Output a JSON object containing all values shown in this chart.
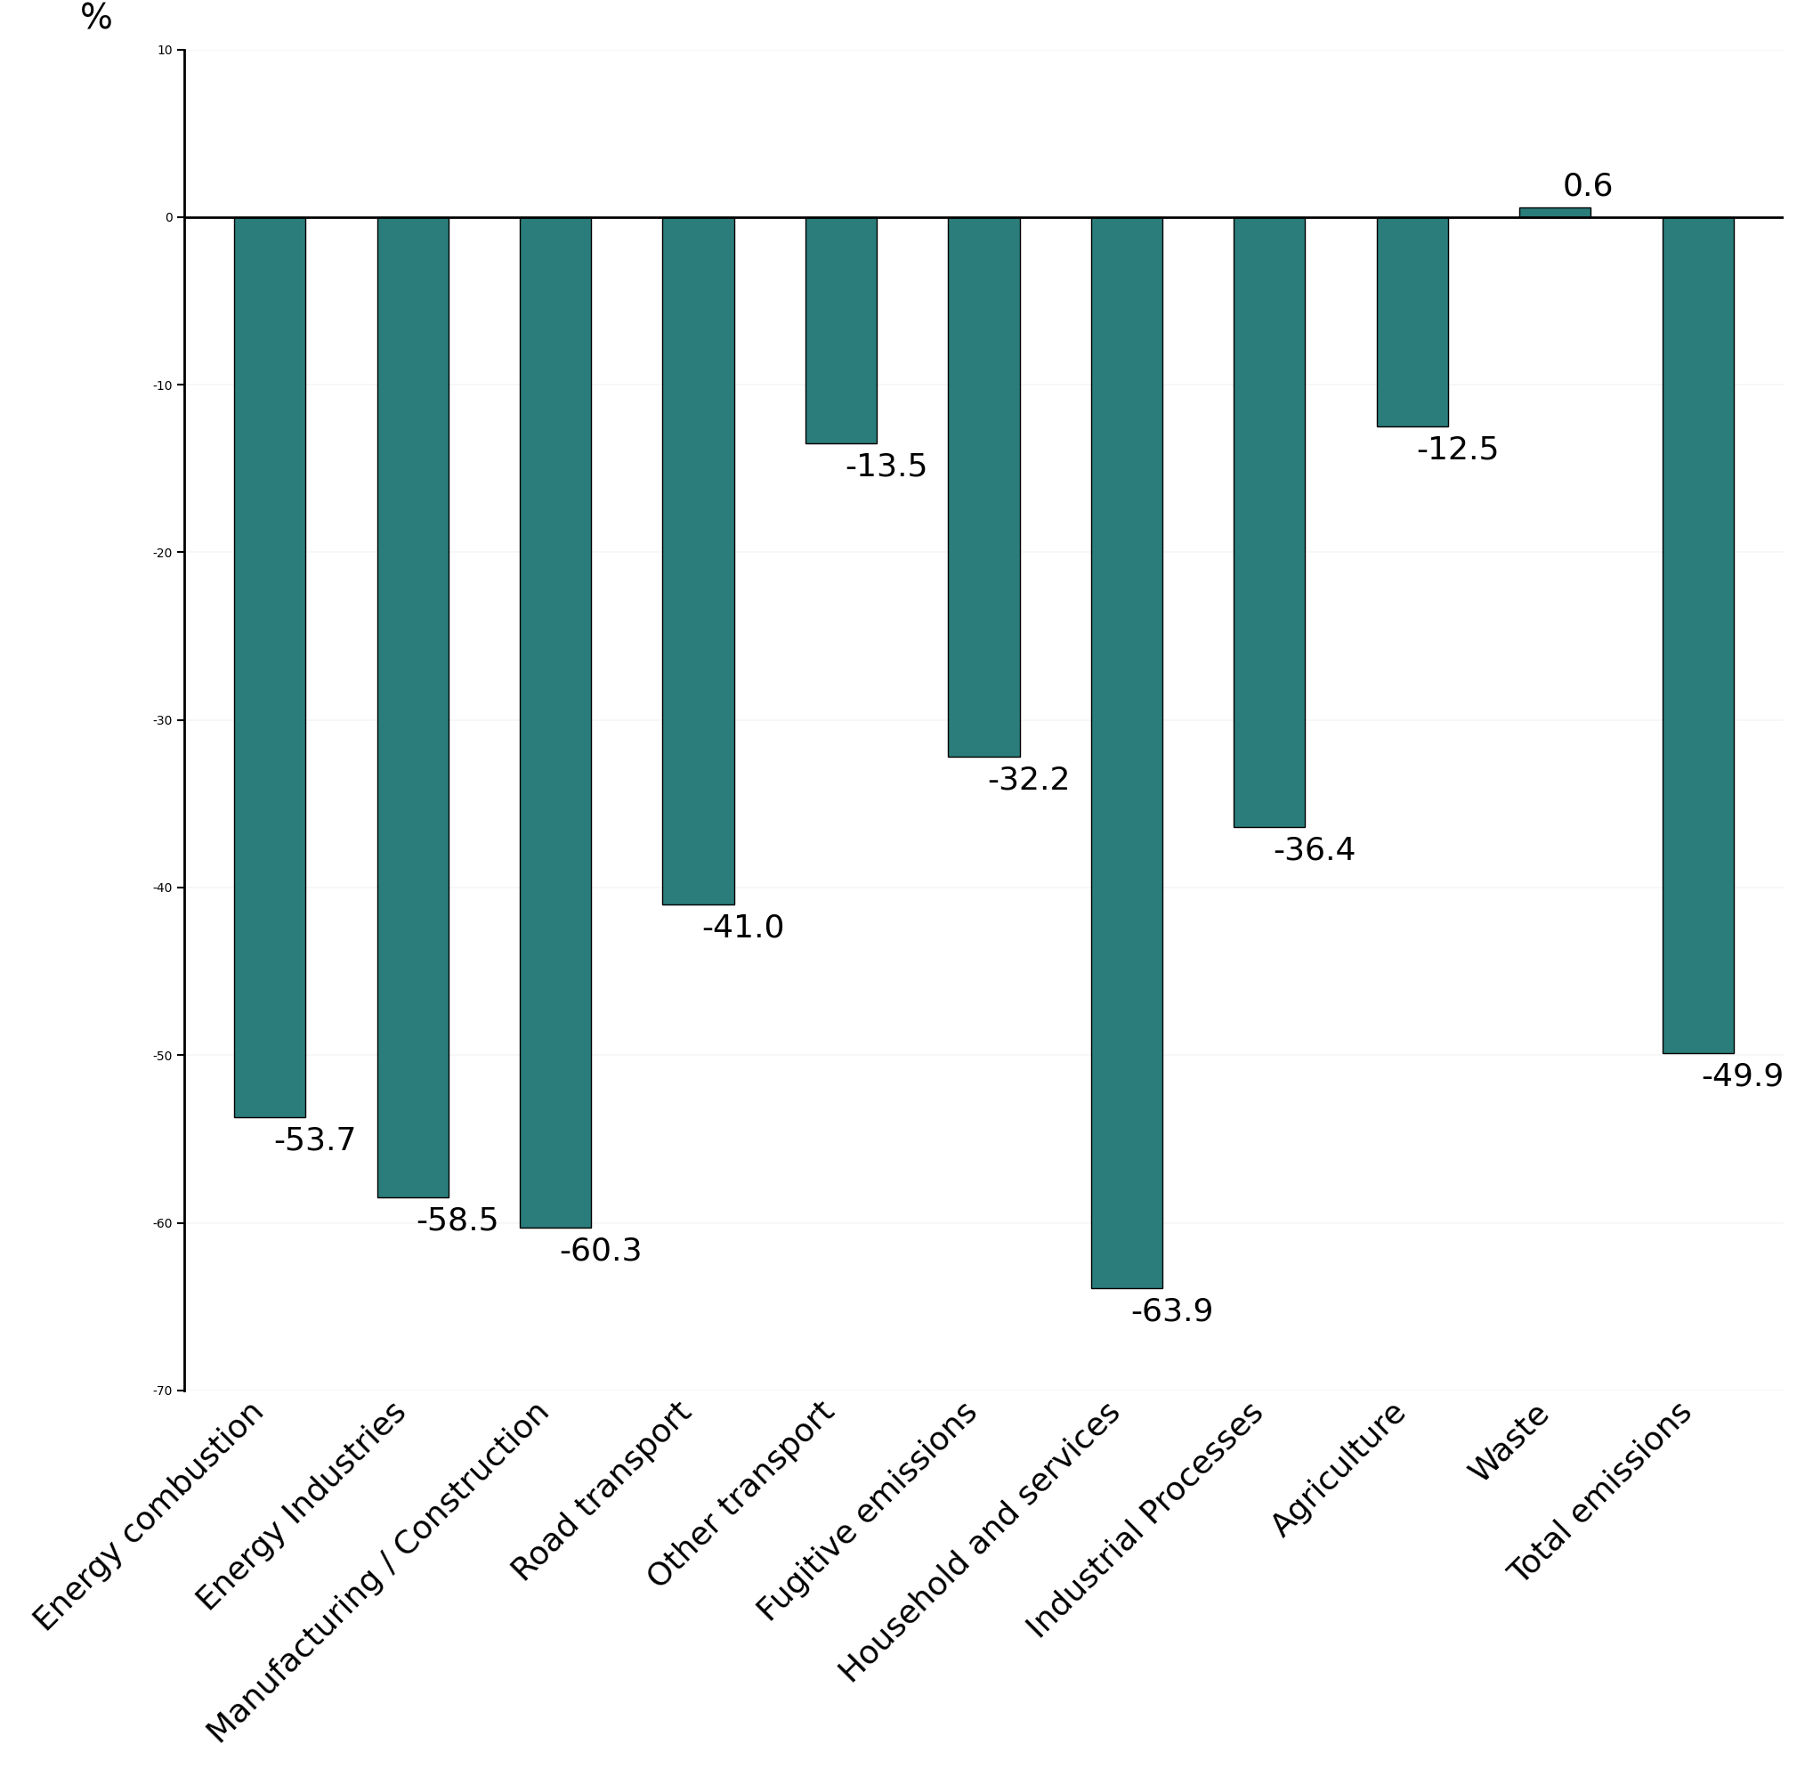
{
  "categories": [
    "Energy combustion",
    "Energy Industries",
    "Manufacturing / Construction",
    "Road transport",
    "Other transport",
    "Fugitive emissions",
    "Household and services",
    "Industrial Processes",
    "Agriculture",
    "Waste",
    "Total emissions"
  ],
  "values": [
    -53.7,
    -58.5,
    -60.3,
    -41.0,
    -13.5,
    -32.2,
    -63.9,
    -36.4,
    -12.5,
    0.6,
    -49.9
  ],
  "bar_color": "#2a7d7b",
  "ylabel": "%",
  "ylim": [
    -70,
    10
  ],
  "yticks": [
    10,
    0,
    -10,
    -20,
    -30,
    -40,
    -50,
    -60,
    -70
  ],
  "background_color": "#ffffff",
  "label_fontsize": 26,
  "tick_fontsize": 28,
  "ylabel_fontsize": 28,
  "xtick_fontsize": 26,
  "bar_width": 0.5
}
